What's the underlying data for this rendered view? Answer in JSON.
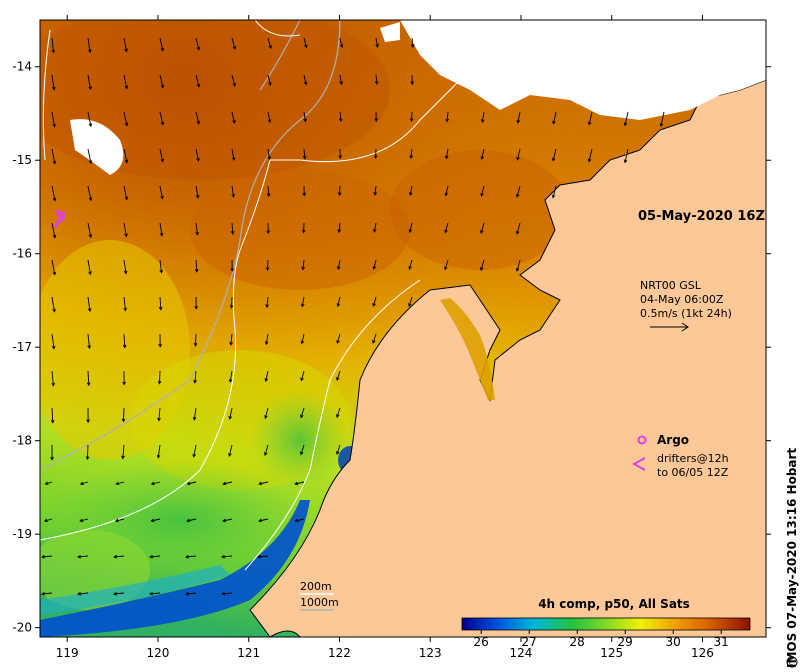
{
  "map": {
    "date_label": "05-May-2020 16Z",
    "current_model": "NRT00 GSL",
    "current_time": "04-May 06:00Z",
    "current_scale": "0.5m/s (1kt 24h)",
    "legend_argo": "Argo",
    "legend_drifters_line1": "drifters@12h",
    "legend_drifters_line2": "to 06/05 12Z",
    "depth_200": "200m",
    "depth_1000": "1000m",
    "colorbar_title": "4h comp, p50, All Sats",
    "colorbar_ticks": [
      "26",
      "27",
      "28",
      "29",
      "30",
      "31"
    ],
    "credit": "IMOS 07-May-2020 13:16 Hobart",
    "x_ticks": [
      "119",
      "120",
      "121",
      "122",
      "123",
      "124",
      "125",
      "126"
    ],
    "y_ticks": [
      "-14",
      "-15",
      "-16",
      "-17",
      "-18",
      "-19",
      "-20"
    ],
    "lon_range": [
      118.7,
      126.7
    ],
    "lat_range": [
      -20.1,
      -13.5
    ],
    "sst_range": [
      25.6,
      31.6
    ],
    "colors": {
      "land": "#fcc898",
      "argo": "#e040e0",
      "coast": "#000000"
    },
    "icons": [
      "copyright-icon",
      "current-arrow-icon",
      "argo-marker-icon",
      "drifter-track-icon"
    ]
  }
}
